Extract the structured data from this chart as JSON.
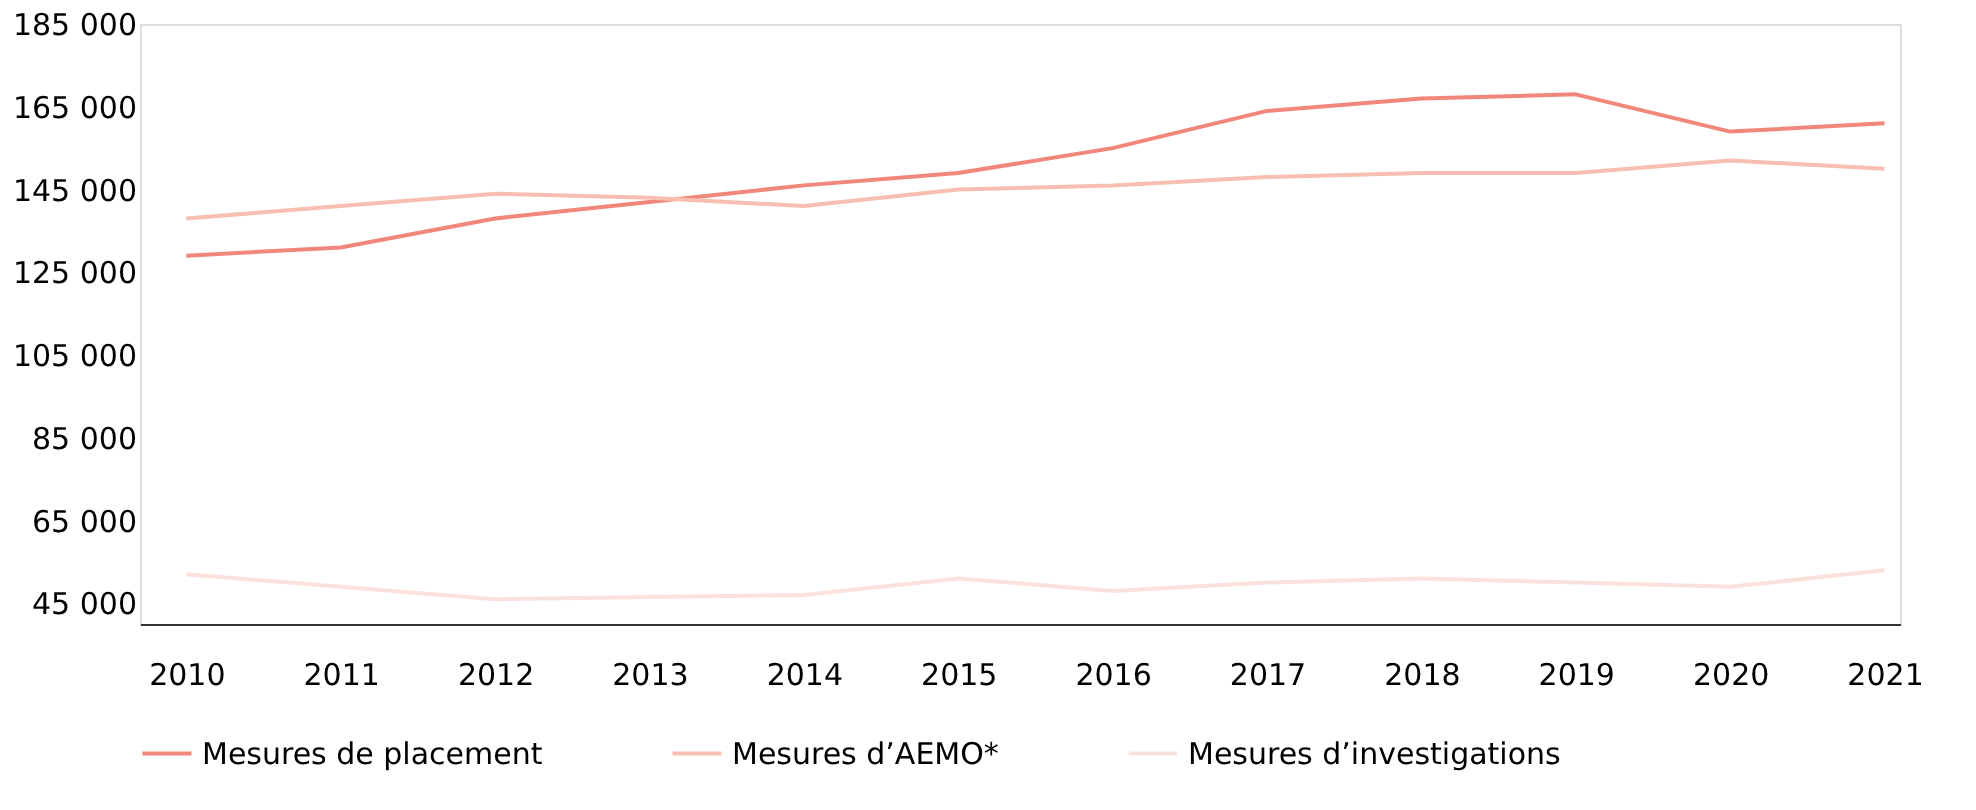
{
  "chart_data": {
    "type": "line",
    "categories": [
      "2010",
      "2011",
      "2012",
      "2013",
      "2014",
      "2015",
      "2016",
      "2017",
      "2018",
      "2019",
      "2020",
      "2021"
    ],
    "series": [
      {
        "name": "Mesures de placement",
        "color": "#f0877a",
        "values": [
          129000,
          131000,
          138000,
          142000,
          146000,
          149000,
          155000,
          164000,
          167000,
          168000,
          159000,
          161000
        ]
      },
      {
        "name": "Mesures d’AEMO*",
        "color": "#f7bfb1",
        "values": [
          138000,
          141000,
          144000,
          143000,
          141000,
          145000,
          146000,
          148000,
          149000,
          149000,
          152000,
          150000
        ]
      },
      {
        "name": "Mesures d’investigations",
        "color": "#fbe1db",
        "values": [
          52000,
          49000,
          46000,
          46500,
          47000,
          51000,
          48000,
          50000,
          51000,
          50000,
          49000,
          53000
        ]
      }
    ],
    "ylim": [
      40000,
      185000
    ],
    "yticks": [
      {
        "value": 45000,
        "label": "45 000"
      },
      {
        "value": 65000,
        "label": "65 000"
      },
      {
        "value": 85000,
        "label": "85 000"
      },
      {
        "value": 105000,
        "label": "105 000"
      },
      {
        "value": 125000,
        "label": "125 000"
      },
      {
        "value": 145000,
        "label": "145 000"
      },
      {
        "value": 165000,
        "label": "165 000"
      },
      {
        "value": 185000,
        "label": "185 000"
      }
    ],
    "grid": false,
    "legend": "bottom",
    "marker": "none",
    "line_style": "solid"
  }
}
